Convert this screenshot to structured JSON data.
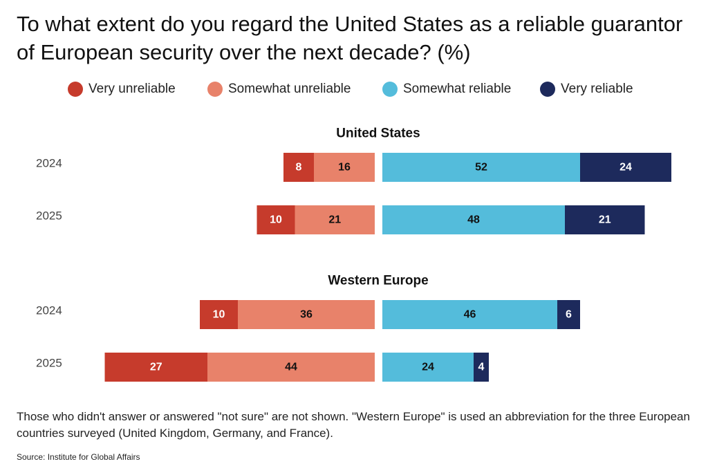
{
  "title": "To what extent do you regard the United States as a reliable guarantor of European security over the next decade? (%)",
  "note": "Those who didn't answer or answered \"not sure\" are not shown. \"Western Europe\" is used an abbreviation for the three European countries surveyed (United Kingdom, Germany, and France).",
  "source": "Source: Institute for Global Affairs",
  "colors": {
    "very_unreliable": "#c63b2c",
    "somewhat_unreliable": "#e8826a",
    "somewhat_reliable": "#54bcdb",
    "very_reliable": "#1d2a5c"
  },
  "chart_data": {
    "type": "bar",
    "orientation": "horizontal",
    "stacked": "diverging",
    "legend": [
      "Very unreliable",
      "Somewhat unreliable",
      "Somewhat reliable",
      "Very reliable"
    ],
    "legend_position": "top",
    "groups": [
      {
        "name": "United States",
        "rows": [
          {
            "label": "2024",
            "very_unreliable": 8,
            "somewhat_unreliable": 16,
            "somewhat_reliable": 52,
            "very_reliable": 24
          },
          {
            "label": "2025",
            "very_unreliable": 10,
            "somewhat_unreliable": 21,
            "somewhat_reliable": 48,
            "very_reliable": 21
          }
        ]
      },
      {
        "name": "Western Europe",
        "rows": [
          {
            "label": "2024",
            "very_unreliable": 10,
            "somewhat_unreliable": 36,
            "somewhat_reliable": 46,
            "very_reliable": 6
          },
          {
            "label": "2025",
            "very_unreliable": 27,
            "somewhat_unreliable": 44,
            "somewhat_reliable": 24,
            "very_reliable": 4
          }
        ]
      }
    ]
  }
}
